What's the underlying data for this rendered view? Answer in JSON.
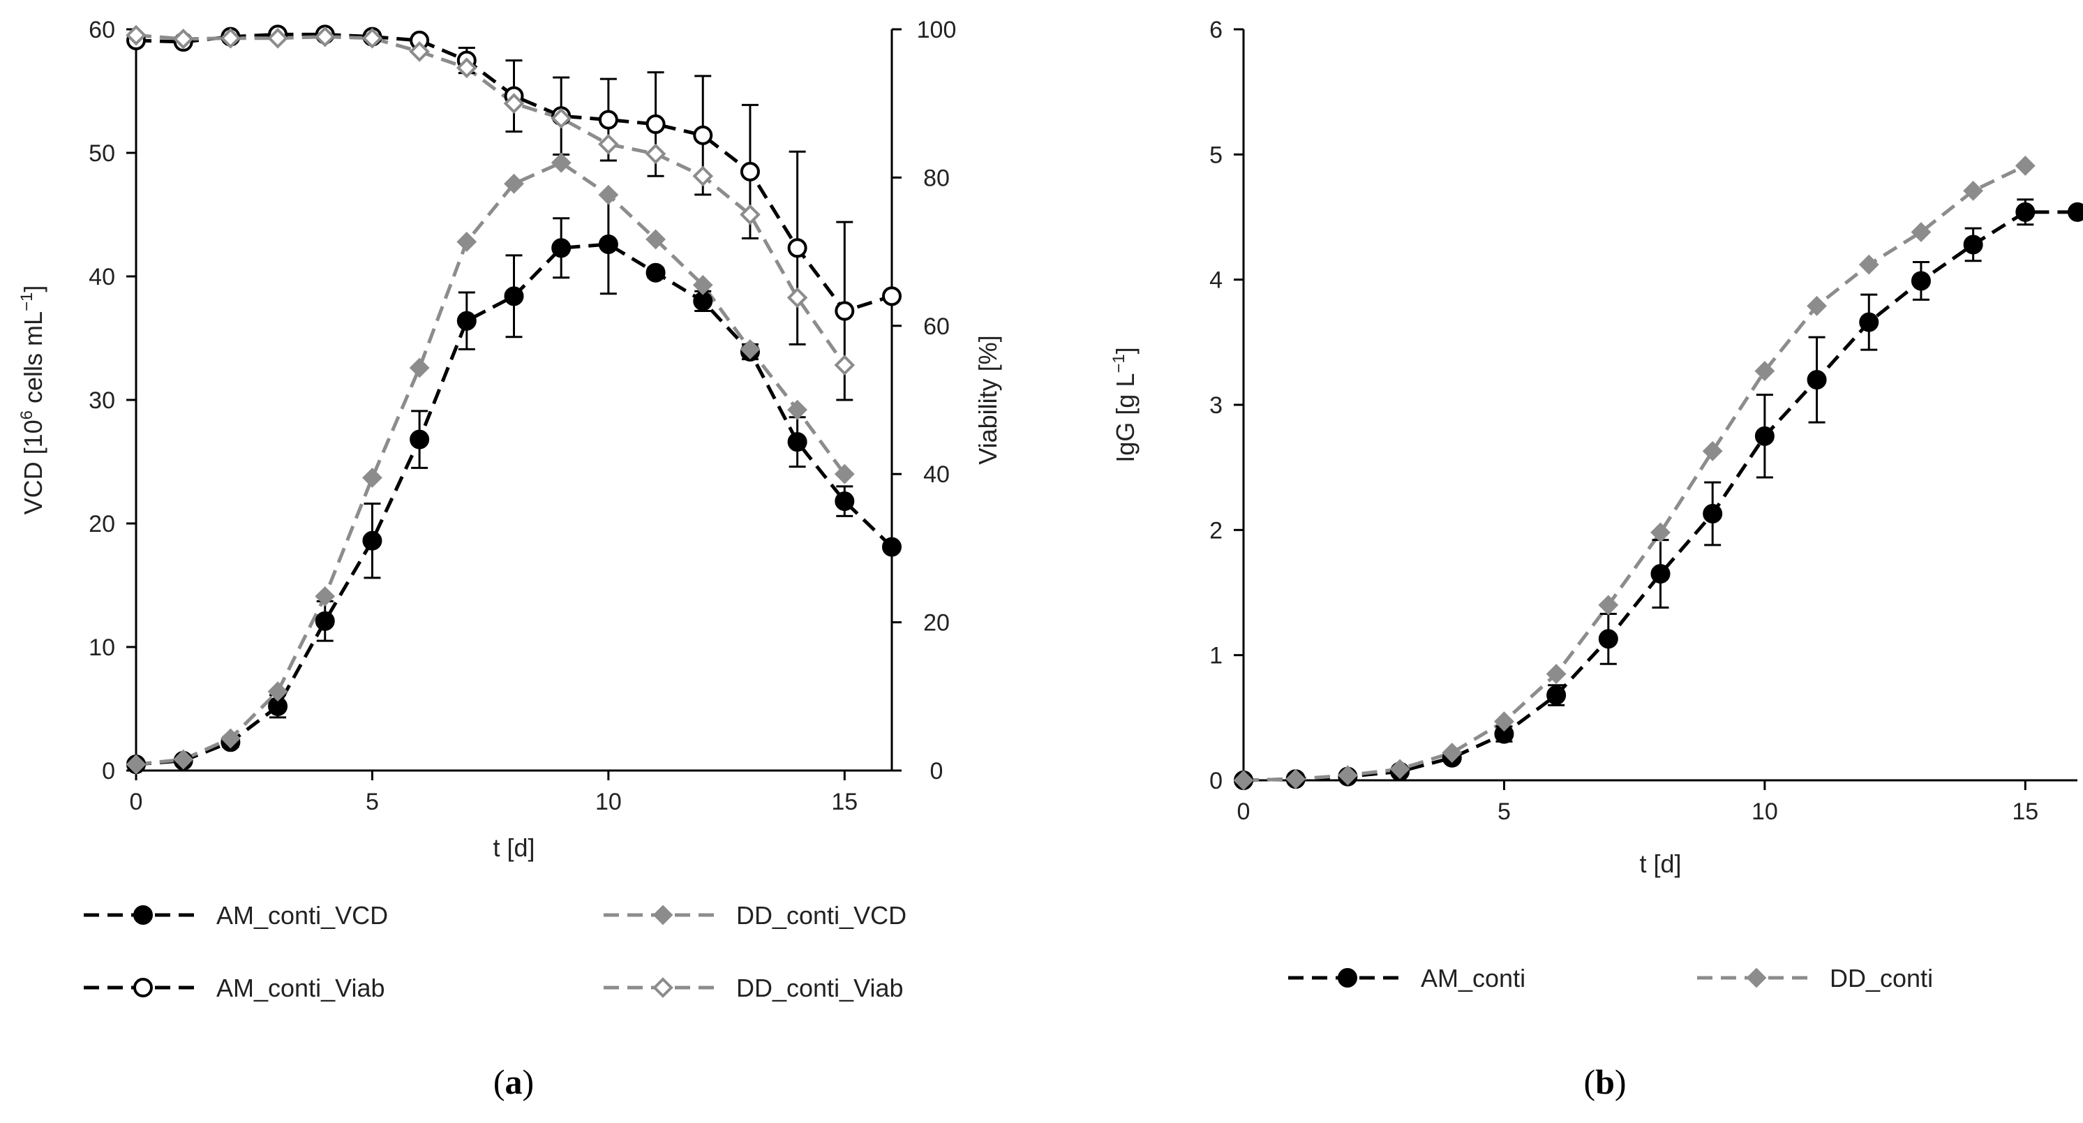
{
  "colors": {
    "am": "#000000",
    "dd": "#8c8c8c",
    "axis": "#000000"
  },
  "chart_data": [
    {
      "id": "a",
      "panel_label": "a",
      "type": "line",
      "xlabel": "t [d]",
      "ylabel_left": "VCD [10",
      "ylabel_left_sup": "6",
      "ylabel_left_mid": " cells mL",
      "ylabel_left_sup2": "−1",
      "ylabel_left_end": "]",
      "ylabel_right": "Viability [%]",
      "xlim": [
        0,
        16
      ],
      "ylim_left": [
        0,
        60
      ],
      "ylim_right": [
        0,
        100
      ],
      "x_ticks": [
        "0",
        "5",
        "10",
        "15"
      ],
      "y_left_ticks": [
        "0",
        "10",
        "20",
        "30",
        "40",
        "50",
        "60"
      ],
      "y_right_ticks": [
        "0",
        "20",
        "40",
        "60",
        "80",
        "100"
      ],
      "series": [
        {
          "name": "AM_conti_VCD",
          "axis": "left",
          "color": "am",
          "marker": "circle-filled",
          "x": [
            0,
            1,
            2,
            3,
            4,
            5,
            6,
            7,
            8,
            9,
            10,
            11,
            12,
            13,
            14,
            15,
            16
          ],
          "y": [
            0.5,
            0.8,
            2.3,
            5.2,
            12.1,
            18.6,
            26.8,
            36.4,
            38.4,
            42.3,
            42.6,
            40.3,
            38.0,
            33.9,
            26.6,
            21.8,
            18.1
          ],
          "err": [
            0.2,
            0.2,
            0.4,
            0.9,
            1.6,
            3.0,
            2.3,
            2.3,
            3.3,
            2.4,
            4.0,
            0.4,
            0.8,
            0.6,
            2.0,
            1.2,
            0
          ]
        },
        {
          "name": "DD_conti_VCD",
          "axis": "left",
          "color": "dd",
          "marker": "diamond-filled",
          "x": [
            0,
            1,
            2,
            3,
            4,
            5,
            6,
            7,
            8,
            9,
            10,
            11,
            12,
            13,
            14,
            15
          ],
          "y": [
            0.5,
            0.9,
            2.6,
            6.4,
            14.1,
            23.7,
            32.6,
            42.8,
            47.5,
            49.2,
            46.6,
            43.0,
            39.3,
            34.1,
            29.2,
            24.0
          ],
          "err": []
        },
        {
          "name": "AM_conti_Viab",
          "axis": "right",
          "color": "am",
          "marker": "circle-open",
          "x": [
            0,
            1,
            2,
            3,
            4,
            5,
            6,
            7,
            8,
            9,
            10,
            11,
            12,
            13,
            14,
            15,
            16
          ],
          "y": [
            98.5,
            98.3,
            99.0,
            99.3,
            99.3,
            99.0,
            98.5,
            95.8,
            91.0,
            88.3,
            87.8,
            87.2,
            85.7,
            80.8,
            70.5,
            62.0,
            64.0
          ],
          "err": [
            0.3,
            0.3,
            0.3,
            0.3,
            0.3,
            0.3,
            0.5,
            1.7,
            4.8,
            5.2,
            5.5,
            7.0,
            8.0,
            9.0,
            13.0,
            12.0,
            0
          ]
        },
        {
          "name": "DD_conti_Viab",
          "axis": "right",
          "color": "dd",
          "marker": "diamond-open",
          "x": [
            0,
            1,
            2,
            3,
            4,
            5,
            6,
            7,
            8,
            9,
            10,
            11,
            12,
            13,
            14,
            15
          ],
          "y": [
            99.2,
            98.7,
            98.8,
            98.8,
            99.0,
            98.8,
            97.0,
            94.8,
            90.0,
            88.0,
            84.5,
            83.2,
            80.2,
            75.0,
            63.8,
            54.7
          ],
          "err": []
        }
      ],
      "legend": [
        {
          "label": "AM_conti_VCD",
          "color": "am",
          "marker": "circle-filled"
        },
        {
          "label": "DD_conti_VCD",
          "color": "dd",
          "marker": "diamond-filled"
        },
        {
          "label": "AM_conti_Viab",
          "color": "am",
          "marker": "circle-open"
        },
        {
          "label": "DD_conti_Viab",
          "color": "dd",
          "marker": "diamond-open"
        }
      ]
    },
    {
      "id": "b",
      "panel_label": "b",
      "type": "line",
      "xlabel": "t [d]",
      "ylabel_left": "IgG [g L",
      "ylabel_left_sup": "−1",
      "ylabel_left_end": "]",
      "xlim": [
        0,
        16
      ],
      "ylim_left": [
        0,
        6
      ],
      "x_ticks": [
        "0",
        "5",
        "10",
        "15"
      ],
      "y_left_ticks": [
        "0",
        "1",
        "2",
        "3",
        "4",
        "5",
        "6"
      ],
      "series": [
        {
          "name": "AM_conti",
          "axis": "left",
          "color": "am",
          "marker": "circle-filled",
          "x": [
            0,
            1,
            2,
            3,
            4,
            5,
            6,
            7,
            8,
            9,
            10,
            11,
            12,
            13,
            14,
            15,
            16
          ],
          "y": [
            0.0,
            0.01,
            0.03,
            0.07,
            0.18,
            0.37,
            0.68,
            1.13,
            1.65,
            2.13,
            2.75,
            3.2,
            3.66,
            3.99,
            4.28,
            4.54,
            4.54
          ],
          "err": [
            0,
            0,
            0.01,
            0.01,
            0.03,
            0.06,
            0.08,
            0.2,
            0.27,
            0.25,
            0.33,
            0.34,
            0.22,
            0.15,
            0.13,
            0.1,
            0
          ]
        },
        {
          "name": "DD_conti",
          "axis": "left",
          "color": "dd",
          "marker": "diamond-filled",
          "x": [
            0,
            1,
            2,
            3,
            4,
            5,
            6,
            7,
            8,
            9,
            10,
            11,
            12,
            13,
            14,
            15
          ],
          "y": [
            0.0,
            0.01,
            0.04,
            0.09,
            0.22,
            0.47,
            0.85,
            1.4,
            1.98,
            2.63,
            3.27,
            3.79,
            4.12,
            4.38,
            4.71,
            4.91
          ],
          "err": []
        }
      ],
      "legend": [
        {
          "label": "AM_conti",
          "color": "am",
          "marker": "circle-filled"
        },
        {
          "label": "DD_conti",
          "color": "dd",
          "marker": "diamond-filled"
        }
      ]
    }
  ]
}
